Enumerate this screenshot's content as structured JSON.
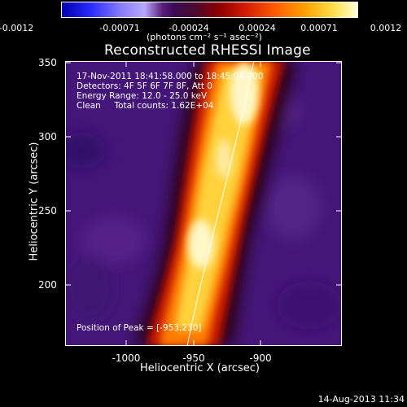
{
  "colorbar": {
    "tick_labels": [
      "-0.0012",
      "-0.00071",
      "-0.00024",
      "0.00024",
      "0.00071",
      "0.0012"
    ],
    "units": "(photons cm⁻² s⁻¹ asec⁻²)"
  },
  "title": "Reconstructed RHESSI Image",
  "overlay": {
    "line1": "17-Nov-2011 18:41:58.000 to 18:45:04.000",
    "line2": "Detectors: 4F 5F 6F 7F 8F, Att 0",
    "line3": "Energy Range: 12.0 - 25.0 keV",
    "line4": "Clean     Total counts: 1.62E+04",
    "peak": "Position of Peak = [-953,230]"
  },
  "axes": {
    "xlabel": "Heliocentric X (arcsec)",
    "ylabel": "Heliocentric Y (arcsec)",
    "x_ticks": [
      "-1000",
      "-950",
      "-900"
    ],
    "y_ticks": [
      "350",
      "300",
      "250",
      "200"
    ]
  },
  "timestamp": "14-Aug-2013 11:34"
}
